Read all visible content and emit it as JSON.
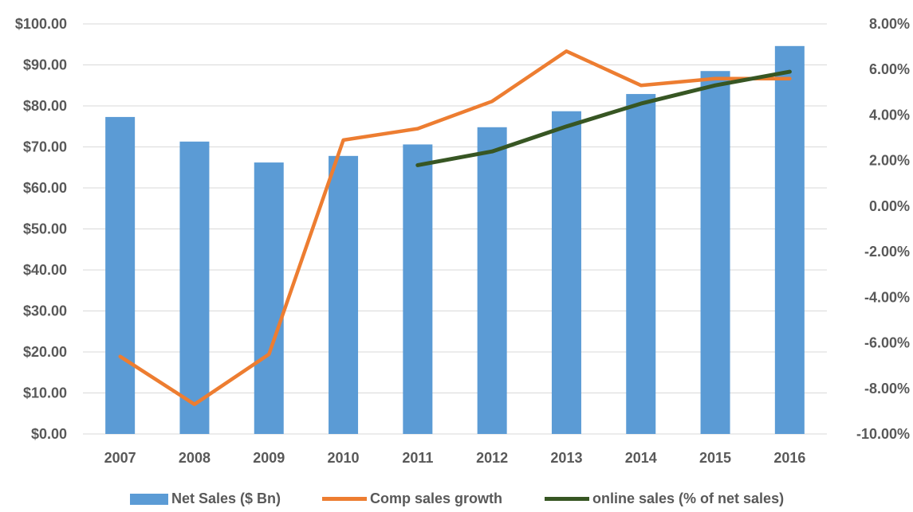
{
  "chart_data": {
    "type": "bar",
    "categories": [
      "2007",
      "2008",
      "2009",
      "2010",
      "2011",
      "2012",
      "2013",
      "2014",
      "2015",
      "2016"
    ],
    "y_left": {
      "ylim": [
        0,
        100
      ],
      "ticks": [
        0,
        10,
        20,
        30,
        40,
        50,
        60,
        70,
        80,
        90,
        100
      ],
      "tick_labels": [
        "$0.00",
        "$10.00",
        "$20.00",
        "$30.00",
        "$40.00",
        "$50.00",
        "$60.00",
        "$70.00",
        "$80.00",
        "$90.00",
        "$100.00"
      ]
    },
    "y_right": {
      "ylim": [
        -10,
        8
      ],
      "ticks": [
        -10,
        -8,
        -6,
        -4,
        -2,
        0,
        2,
        4,
        6,
        8
      ],
      "tick_labels": [
        "-10.00%",
        "-8.00%",
        "-6.00%",
        "-4.00%",
        "-2.00%",
        "0.00%",
        "2.00%",
        "4.00%",
        "6.00%",
        "8.00%"
      ]
    },
    "series": [
      {
        "name": "Net Sales ($ Bn)",
        "type": "bar",
        "axis": "left",
        "color": "#5B9BD5",
        "values": [
          77.3,
          71.3,
          66.2,
          67.8,
          70.6,
          74.8,
          78.7,
          82.9,
          88.5,
          94.6
        ]
      },
      {
        "name": "Comp sales growth",
        "type": "line",
        "axis": "right",
        "color": "#ED7D31",
        "values": [
          -6.6,
          -8.7,
          -6.5,
          2.9,
          3.4,
          4.6,
          6.8,
          5.3,
          5.6,
          5.6
        ]
      },
      {
        "name": "online sales (% of net sales)",
        "type": "line",
        "axis": "right",
        "color": "#375623",
        "values": [
          null,
          null,
          null,
          null,
          1.8,
          2.4,
          3.5,
          4.5,
          5.3,
          5.9
        ]
      }
    ],
    "grid": true,
    "legend_position": "bottom"
  }
}
